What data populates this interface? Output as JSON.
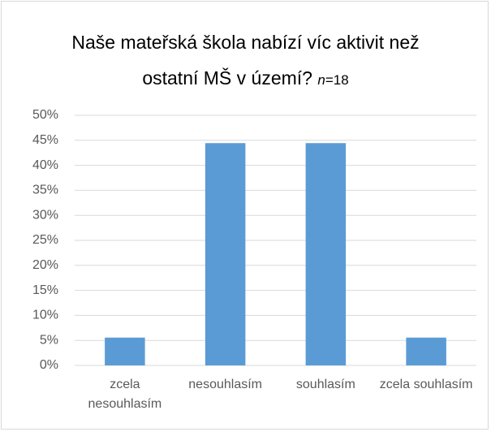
{
  "chart_data": {
    "type": "bar",
    "title": "Naše mateřská škola nabízí víc aktivit než ostatní MŠ v území?",
    "annotation": [
      "n",
      "=18"
    ],
    "categories": [
      "zcela nesouhlasím",
      "nesouhlasím",
      "souhlasím",
      "zcela souhlasím"
    ],
    "values": [
      5.56,
      44.44,
      44.44,
      5.56
    ],
    "color": "#5b9bd5",
    "ylim": [
      0,
      50
    ],
    "yticks": [
      {
        "value": 0,
        "label": "0%"
      },
      {
        "value": 5,
        "label": "5%"
      },
      {
        "value": 10,
        "label": "10%"
      },
      {
        "value": 15,
        "label": "15%"
      },
      {
        "value": 20,
        "label": "20%"
      },
      {
        "value": 25,
        "label": "25%"
      },
      {
        "value": 30,
        "label": "30%"
      },
      {
        "value": 35,
        "label": "35%"
      },
      {
        "value": 40,
        "label": "40%"
      },
      {
        "value": 45,
        "label": "45%"
      },
      {
        "value": 50,
        "label": "50%"
      }
    ],
    "grid": true
  }
}
